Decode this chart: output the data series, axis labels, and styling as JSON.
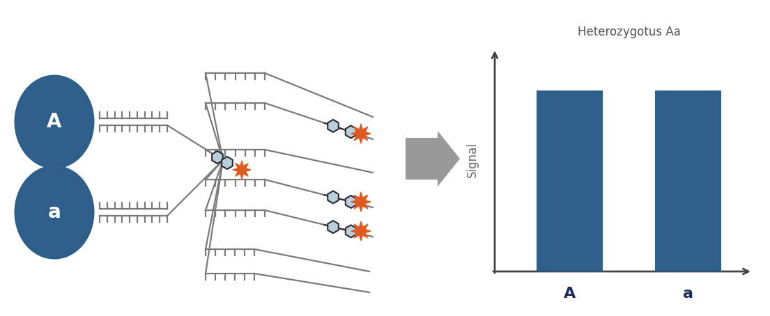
{
  "bg_color": "#ffffff",
  "circle_color": "#2d5f8a",
  "circle_A_label": "A",
  "circle_a_label": "a",
  "bar_color": "#2d5f8a",
  "bar_values": [
    0.78,
    0.78
  ],
  "bar_labels": [
    "A",
    "a"
  ],
  "title": "Heterozygotus Aa",
  "ylabel": "Signal",
  "arrow_color": "#999999",
  "spark_color": "#e05a20",
  "hex_fill": "#b8cfe0",
  "hex_edge": "#2a2a2a",
  "ladder_color": "#7a7a7a",
  "axis_color": "#444444",
  "label_color": "#1a2a5a"
}
